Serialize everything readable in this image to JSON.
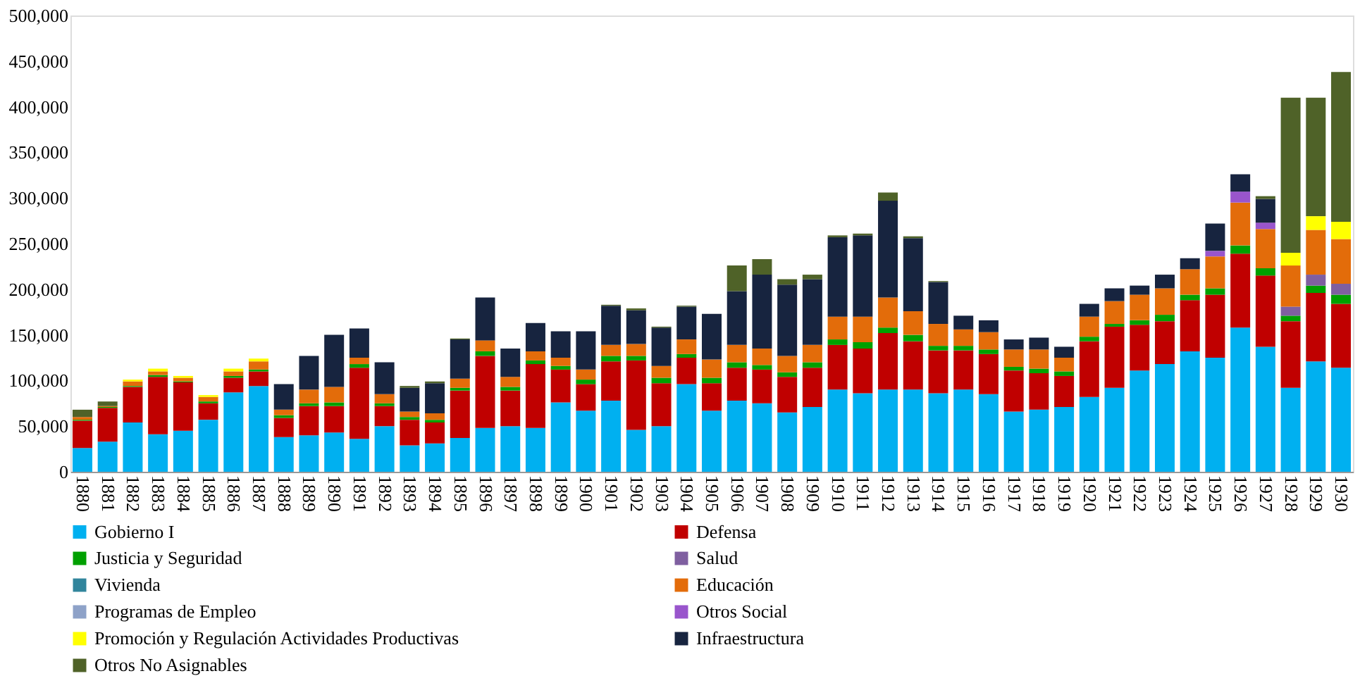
{
  "chart_data": {
    "type": "bar",
    "stacked": true,
    "categories": [
      "1880",
      "1881",
      "1882",
      "1883",
      "1884",
      "1885",
      "1886",
      "1887",
      "1888",
      "1889",
      "1890",
      "1891",
      "1892",
      "1893",
      "1894",
      "1895",
      "1896",
      "1897",
      "1898",
      "1899",
      "1900",
      "1901",
      "1902",
      "1903",
      "1904",
      "1905",
      "1906",
      "1907",
      "1908",
      "1909",
      "1910",
      "1911",
      "1912",
      "1913",
      "1914",
      "1915",
      "1916",
      "1917",
      "1918",
      "1919",
      "1920",
      "1921",
      "1922",
      "1923",
      "1924",
      "1925",
      "1926",
      "1927",
      "1928",
      "1929",
      "1930"
    ],
    "ylim": [
      0,
      500000
    ],
    "yticks": [
      0,
      {
        "value": 50000,
        "label": "50,000"
      },
      {
        "value": 100000,
        "label": "100,000"
      },
      {
        "value": 150000,
        "label": "150,000"
      },
      {
        "value": 200000,
        "label": "200,000"
      },
      {
        "value": 250000,
        "label": "250,000"
      },
      {
        "value": 300000,
        "label": "300,000"
      },
      {
        "value": 350000,
        "label": "350,000"
      },
      {
        "value": 400000,
        "label": "400,000"
      },
      {
        "value": 450000,
        "label": "450,000"
      },
      {
        "value": 500000,
        "label": "500,000"
      }
    ],
    "grid": false,
    "legend": "bottom",
    "series": [
      {
        "name": "Gobierno I",
        "color": "#00b0f0",
        "values": [
          26000,
          33000,
          54000,
          41000,
          45000,
          57000,
          87000,
          94000,
          38000,
          40000,
          43000,
          36000,
          50000,
          29000,
          31000,
          37000,
          48000,
          50000,
          48000,
          76000,
          67000,
          78000,
          46000,
          50000,
          96000,
          67000,
          78000,
          75000,
          65000,
          71000,
          90000,
          86000,
          90000,
          90000,
          86000,
          90000,
          85000,
          66000,
          68000,
          71000,
          82000,
          92000,
          111000,
          118000,
          132000,
          125000,
          158000,
          137000,
          92000,
          121000,
          114000
        ]
      },
      {
        "name": "Defensa",
        "color": "#c00000",
        "values": [
          30000,
          37000,
          39000,
          63000,
          53000,
          18000,
          16000,
          16000,
          21000,
          32000,
          29000,
          78000,
          22000,
          28000,
          23000,
          52000,
          79000,
          39000,
          70000,
          36000,
          29000,
          43000,
          76000,
          47000,
          29000,
          30000,
          36000,
          37000,
          39000,
          43000,
          49000,
          49000,
          62000,
          53000,
          47000,
          43000,
          44000,
          45000,
          40000,
          34000,
          61000,
          67000,
          50000,
          47000,
          56000,
          69000,
          81000,
          78000,
          73000,
          75000,
          70000
        ]
      },
      {
        "name": "Justicia y Seguridad",
        "color": "#00a000",
        "values": [
          1000,
          1000,
          1000,
          2000,
          1000,
          2000,
          2000,
          2000,
          3000,
          3000,
          4000,
          4000,
          3000,
          3000,
          3000,
          3000,
          5000,
          4000,
          4000,
          4000,
          5000,
          6000,
          5000,
          6000,
          4000,
          6000,
          6000,
          5000,
          5000,
          6000,
          6000,
          7000,
          6000,
          7000,
          5000,
          5000,
          5000,
          4000,
          5000,
          5000,
          5000,
          3000,
          5000,
          7000,
          6000,
          7000,
          9000,
          8000,
          6000,
          8000,
          10000
        ]
      },
      {
        "name": "Salud",
        "color": "#7f5fa0",
        "values": [
          0,
          0,
          0,
          0,
          0,
          0,
          0,
          0,
          0,
          0,
          0,
          0,
          0,
          0,
          0,
          0,
          0,
          0,
          0,
          0,
          0,
          0,
          0,
          0,
          0,
          0,
          0,
          0,
          0,
          0,
          0,
          0,
          0,
          0,
          0,
          0,
          0,
          0,
          0,
          0,
          0,
          0,
          0,
          0,
          0,
          0,
          0,
          0,
          10000,
          12000,
          12000
        ]
      },
      {
        "name": "Vivienda",
        "color": "#31859c",
        "values": [
          0,
          0,
          0,
          0,
          0,
          0,
          0,
          0,
          0,
          0,
          0,
          0,
          0,
          0,
          0,
          0,
          0,
          0,
          0,
          0,
          0,
          0,
          0,
          0,
          0,
          0,
          0,
          0,
          0,
          0,
          0,
          0,
          0,
          0,
          0,
          0,
          0,
          0,
          0,
          0,
          0,
          0,
          0,
          0,
          0,
          0,
          0,
          0,
          0,
          0,
          0
        ]
      },
      {
        "name": "Educación",
        "color": "#e36c0a",
        "values": [
          3000,
          1000,
          5000,
          4000,
          4000,
          5000,
          5000,
          9000,
          6000,
          15000,
          17000,
          7000,
          10000,
          6000,
          7000,
          10000,
          12000,
          11000,
          10000,
          9000,
          11000,
          12000,
          13000,
          13000,
          16000,
          20000,
          19000,
          18000,
          18000,
          19000,
          25000,
          28000,
          33000,
          26000,
          24000,
          18000,
          19000,
          19000,
          21000,
          15000,
          22000,
          25000,
          28000,
          29000,
          28000,
          35000,
          47000,
          43000,
          45000,
          49000,
          49000
        ]
      },
      {
        "name": "Programas de Empleo",
        "color": "#8ea2c8",
        "values": [
          0,
          0,
          0,
          0,
          0,
          0,
          0,
          0,
          0,
          0,
          0,
          0,
          0,
          0,
          0,
          0,
          0,
          0,
          0,
          0,
          0,
          0,
          0,
          0,
          0,
          0,
          0,
          0,
          0,
          0,
          0,
          0,
          0,
          0,
          0,
          0,
          0,
          0,
          0,
          0,
          0,
          0,
          0,
          0,
          0,
          0,
          0,
          0,
          0,
          0,
          0
        ]
      },
      {
        "name": "Otros Social",
        "color": "#9955cc",
        "values": [
          0,
          0,
          0,
          0,
          0,
          0,
          0,
          0,
          0,
          0,
          0,
          0,
          0,
          0,
          0,
          0,
          0,
          0,
          0,
          0,
          0,
          0,
          0,
          0,
          0,
          0,
          0,
          0,
          0,
          0,
          0,
          0,
          0,
          0,
          0,
          0,
          0,
          0,
          0,
          0,
          0,
          0,
          0,
          0,
          0,
          6000,
          12000,
          7000,
          0,
          0,
          0
        ]
      },
      {
        "name": "Promoción y Regulación Actividades Productivas",
        "color": "#ffff00",
        "values": [
          0,
          0,
          2000,
          3000,
          2000,
          2000,
          3000,
          3000,
          0,
          0,
          0,
          0,
          0,
          0,
          0,
          0,
          0,
          0,
          0,
          0,
          0,
          0,
          0,
          0,
          0,
          0,
          0,
          0,
          0,
          0,
          0,
          0,
          0,
          0,
          0,
          0,
          0,
          0,
          0,
          0,
          0,
          0,
          0,
          0,
          0,
          0,
          0,
          0,
          14000,
          15000,
          19000
        ]
      },
      {
        "name": "Infraestructura",
        "color": "#17243f",
        "values": [
          0,
          0,
          0,
          0,
          0,
          0,
          0,
          0,
          28000,
          37000,
          57000,
          32000,
          35000,
          26000,
          33000,
          43000,
          47000,
          31000,
          31000,
          29000,
          42000,
          43000,
          37000,
          42000,
          36000,
          50000,
          59000,
          81000,
          78000,
          72000,
          87000,
          89000,
          106000,
          80000,
          46000,
          15000,
          13000,
          11000,
          13000,
          12000,
          14000,
          14000,
          10000,
          15000,
          12000,
          30000,
          19000,
          26000,
          0,
          0,
          0
        ]
      },
      {
        "name": "Otros No Asignables",
        "color": "#4f6228",
        "values": [
          8000,
          5000,
          0,
          0,
          0,
          0,
          0,
          0,
          0,
          0,
          0,
          0,
          0,
          2000,
          2000,
          1000,
          0,
          0,
          0,
          0,
          0,
          1000,
          2000,
          1000,
          1000,
          0,
          28000,
          17000,
          6000,
          5000,
          2000,
          2000,
          9000,
          2000,
          1000,
          0,
          0,
          0,
          0,
          0,
          0,
          0,
          0,
          0,
          0,
          0,
          0,
          3000,
          170000,
          130000,
          164000
        ]
      }
    ]
  }
}
